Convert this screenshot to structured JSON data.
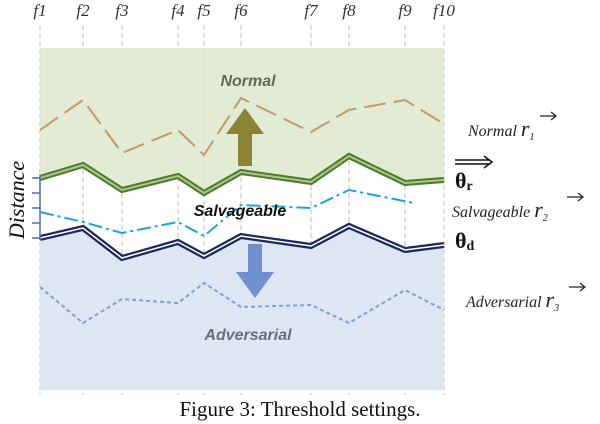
{
  "figure": {
    "features": [
      "f1",
      "f2",
      "f3",
      "f4",
      "f5",
      "f6",
      "f7",
      "f8",
      "f9",
      "f10"
    ],
    "y_axis_label": "Distance",
    "regions": {
      "normal": "Normal",
      "salvageable": "Salvageable",
      "adversarial": "Adversarial"
    },
    "vectors": [
      {
        "name": "Normal",
        "symbol": "r",
        "subscript": "1"
      },
      {
        "name": "Salvageable",
        "symbol": "r",
        "subscript": "2"
      },
      {
        "name": "Adversarial",
        "symbol": "r",
        "subscript": "3"
      }
    ],
    "thresholds": [
      {
        "symbol": "θ",
        "subscript": "r"
      },
      {
        "symbol": "θ",
        "subscript": "d"
      }
    ],
    "caption": "Figure 3: Threshold settings."
  }
}
